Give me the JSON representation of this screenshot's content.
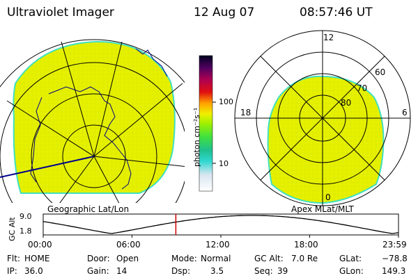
{
  "header": {
    "instrument": "Ultraviolet Imager",
    "date": "12 Aug 07",
    "time": "08:57:46 UT"
  },
  "colorbar": {
    "unit_label": "photon cm⁻²s⁻¹",
    "tick_labels": [
      "100",
      "10"
    ]
  },
  "left_map": {
    "caption": "Geographic Lat/Lon"
  },
  "right_map": {
    "caption": "Apex MLat/MLT",
    "mlt_labels": [
      "12",
      "18",
      "6",
      "0"
    ],
    "mlat_labels": [
      "60",
      "70",
      "80"
    ]
  },
  "timeline": {
    "ylabel": "GC Alt",
    "y_ticks": [
      "9.0",
      "1.8"
    ],
    "x_ticks": [
      "00:00",
      "06:00",
      "12:00",
      "18:00",
      "23:59"
    ],
    "current_time_hours": 8.96,
    "series_color": "#000000",
    "marker_color": "#cc0000"
  },
  "status": {
    "col1": [
      {
        "label": "Flt:",
        "value": "HOME"
      },
      {
        "label": "IP:",
        "value": "36.0"
      }
    ],
    "col2": [
      {
        "label": "Door:",
        "value": "Open"
      },
      {
        "label": "Gain:",
        "value": "14"
      }
    ],
    "col3": [
      {
        "label": "Mode:",
        "value": "Normal"
      },
      {
        "label": "Dsp:",
        "value": "3.5"
      }
    ],
    "col4": [
      {
        "label": "GC Alt:",
        "value": "7.0 Re"
      },
      {
        "label": "Seq:",
        "value": "39"
      }
    ],
    "col5": [
      {
        "label": "GLat:",
        "value": "−78.8"
      },
      {
        "label": "GLon:",
        "value": "149.3"
      }
    ]
  },
  "colors": {
    "aurora_fill": "#e6f000",
    "aurora_edge": "#40e0c0"
  }
}
